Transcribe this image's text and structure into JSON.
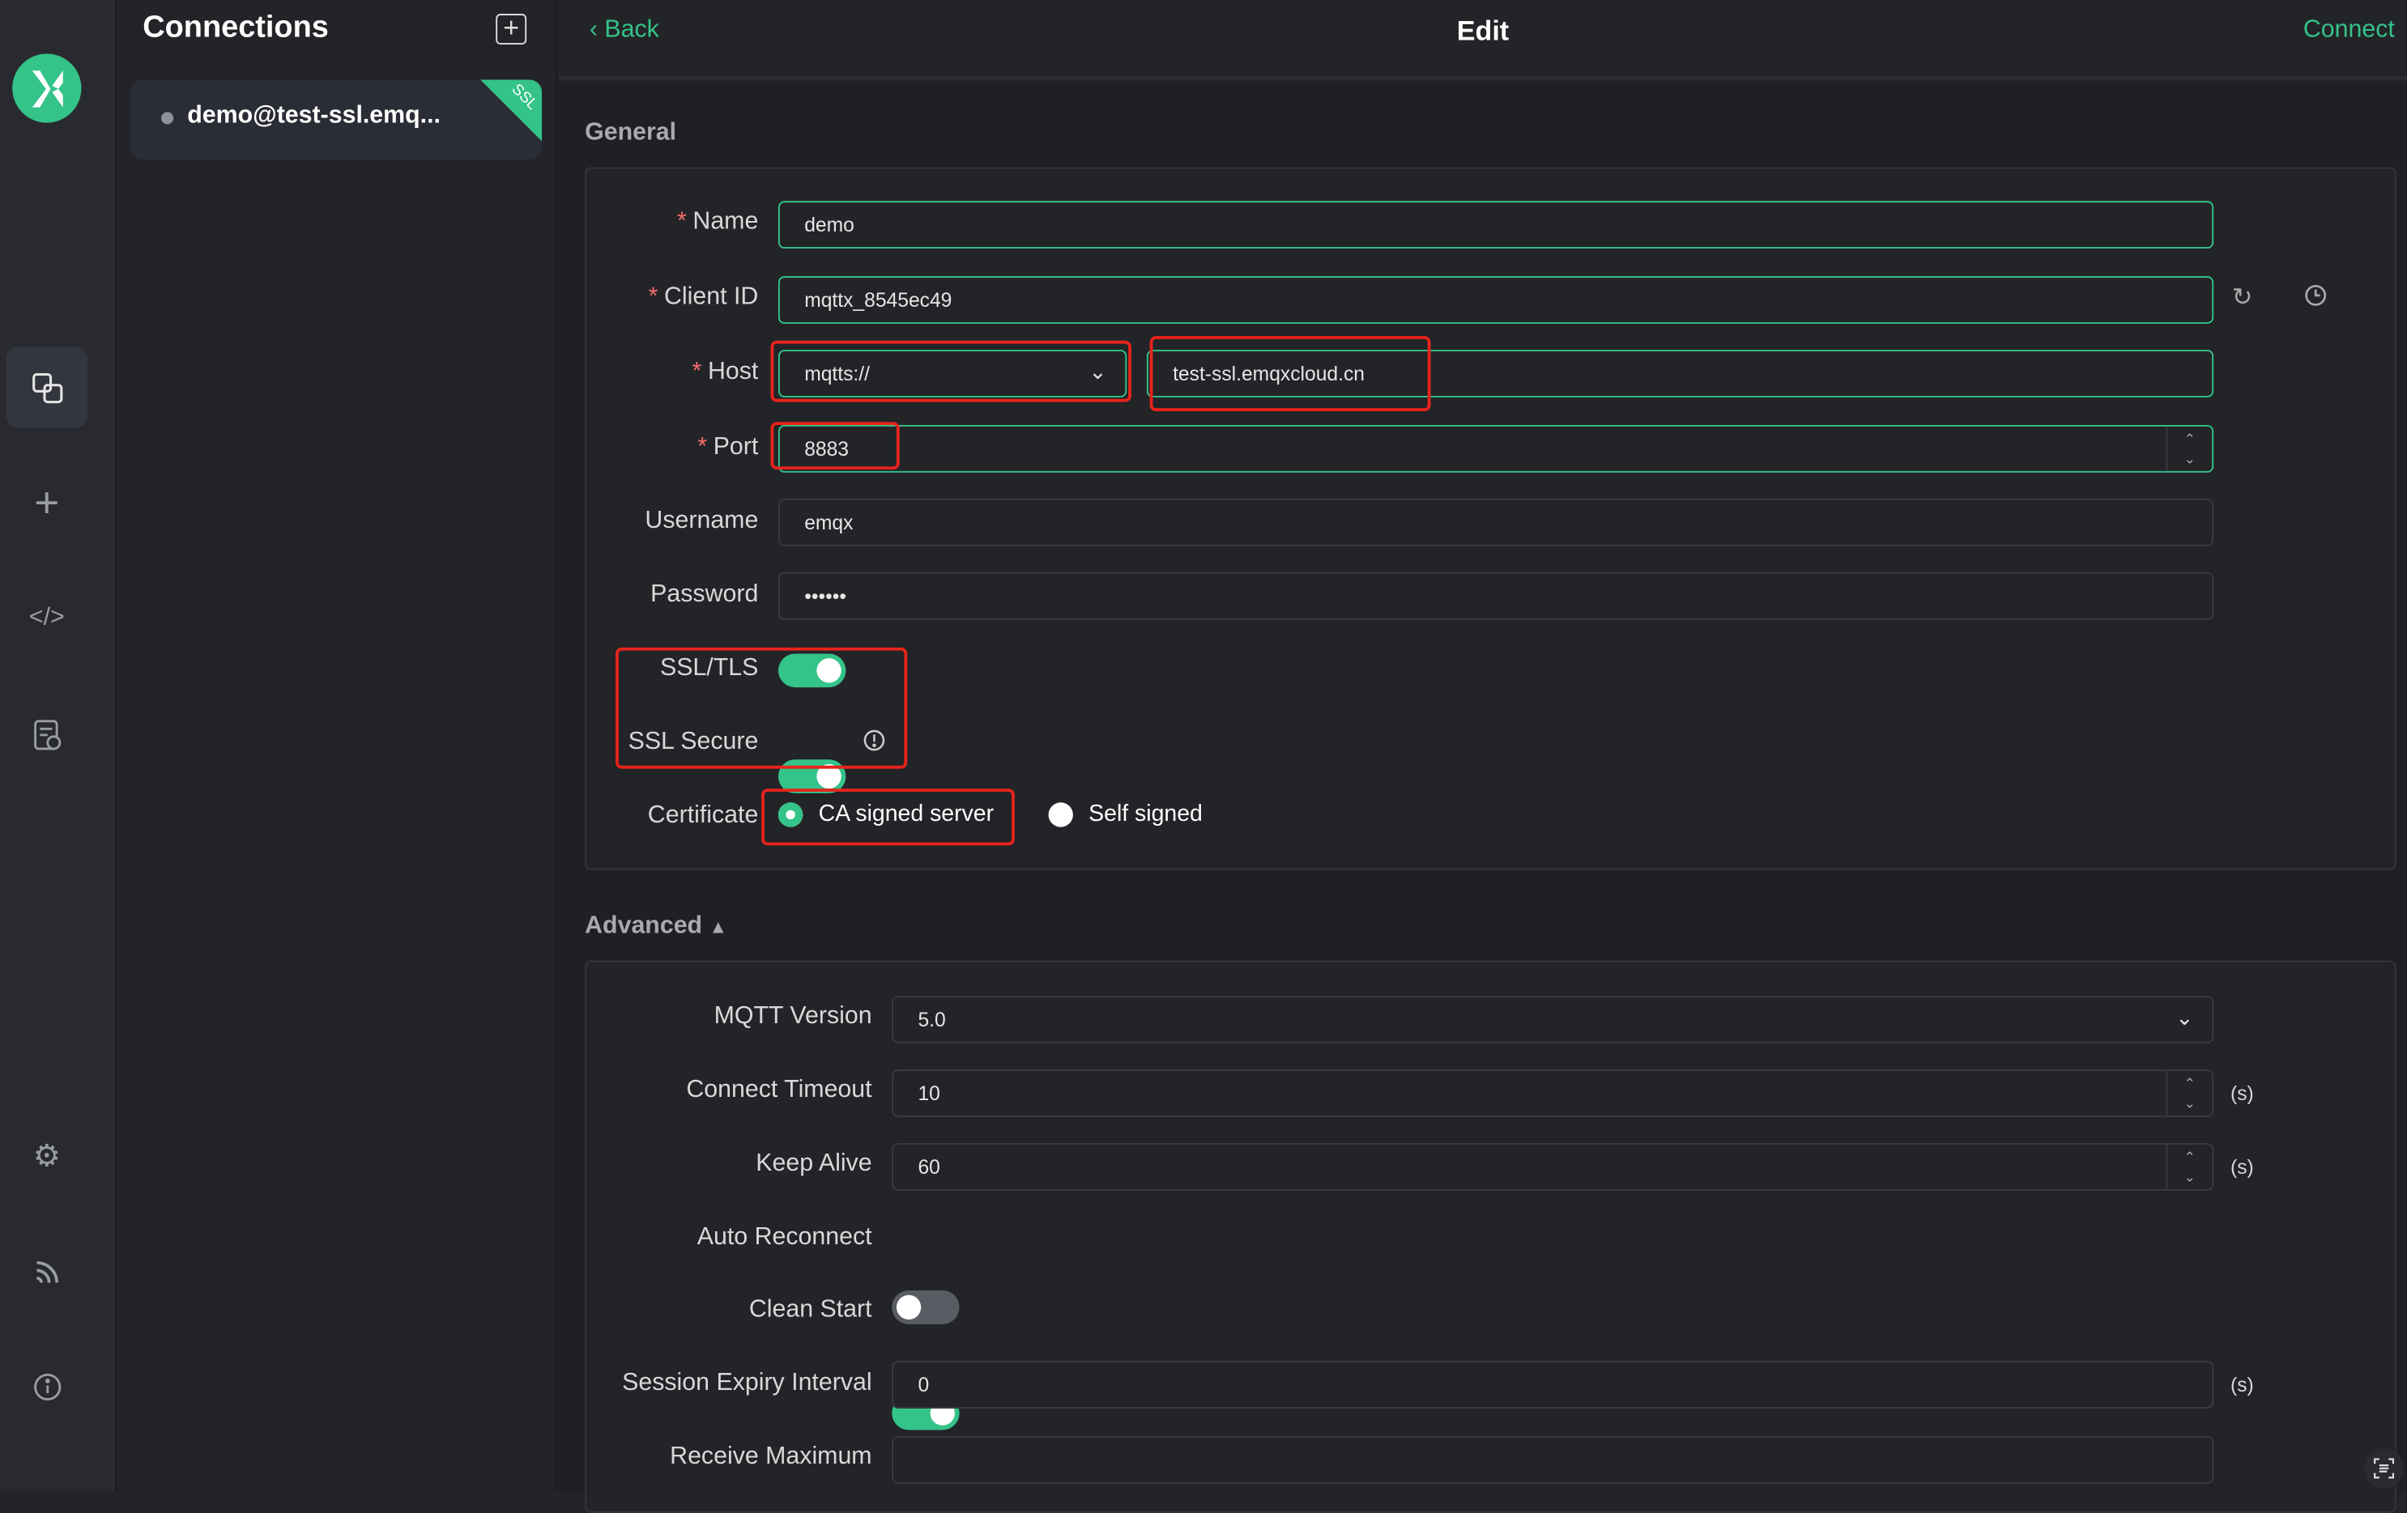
{
  "sidebar": {
    "logo": "MQTTX",
    "icons": [
      "connections-icon",
      "plus-icon",
      "code-icon",
      "log-icon",
      "gear-icon",
      "feed-icon",
      "info-icon"
    ],
    "active": "connections-icon"
  },
  "connections": {
    "title": "Connections",
    "items": [
      {
        "label": "demo@test-ssl.emq...",
        "badge": "SSL"
      }
    ]
  },
  "header": {
    "back": "Back",
    "title": "Edit",
    "connect": "Connect"
  },
  "general": {
    "title": "General",
    "name": {
      "label": "Name",
      "value": "demo"
    },
    "client_id": {
      "label": "Client ID",
      "value": "mqttx_8545ec49"
    },
    "host": {
      "label": "Host",
      "protocol": "mqtts://",
      "value": "test-ssl.emqxcloud.cn"
    },
    "port": {
      "label": "Port",
      "value": "8883"
    },
    "username": {
      "label": "Username",
      "value": "emqx"
    },
    "password": {
      "label": "Password",
      "value": "••••••"
    },
    "ssl_tls": {
      "label": "SSL/TLS",
      "on": true
    },
    "ssl_secure": {
      "label": "SSL Secure",
      "on": true
    },
    "certificate": {
      "label": "Certificate",
      "options": [
        "CA signed server",
        "Self signed"
      ],
      "selected": "CA signed server"
    }
  },
  "advanced": {
    "title": "Advanced",
    "mqtt_version": {
      "label": "MQTT Version",
      "value": "5.0"
    },
    "connect_timeout": {
      "label": "Connect Timeout",
      "value": "10",
      "unit": "(s)"
    },
    "keep_alive": {
      "label": "Keep Alive",
      "value": "60",
      "unit": "(s)"
    },
    "auto_reconnect": {
      "label": "Auto Reconnect",
      "on": false
    },
    "clean_start": {
      "label": "Clean Start",
      "on": true
    },
    "session_expiry": {
      "label": "Session Expiry Interval",
      "value": "0",
      "unit": "(s)"
    },
    "receive_maximum": {
      "label": "Receive Maximum",
      "value": ""
    }
  },
  "colors": {
    "accent": "#34c388",
    "highlight": "#e8231b",
    "required": "#f56c6c"
  }
}
